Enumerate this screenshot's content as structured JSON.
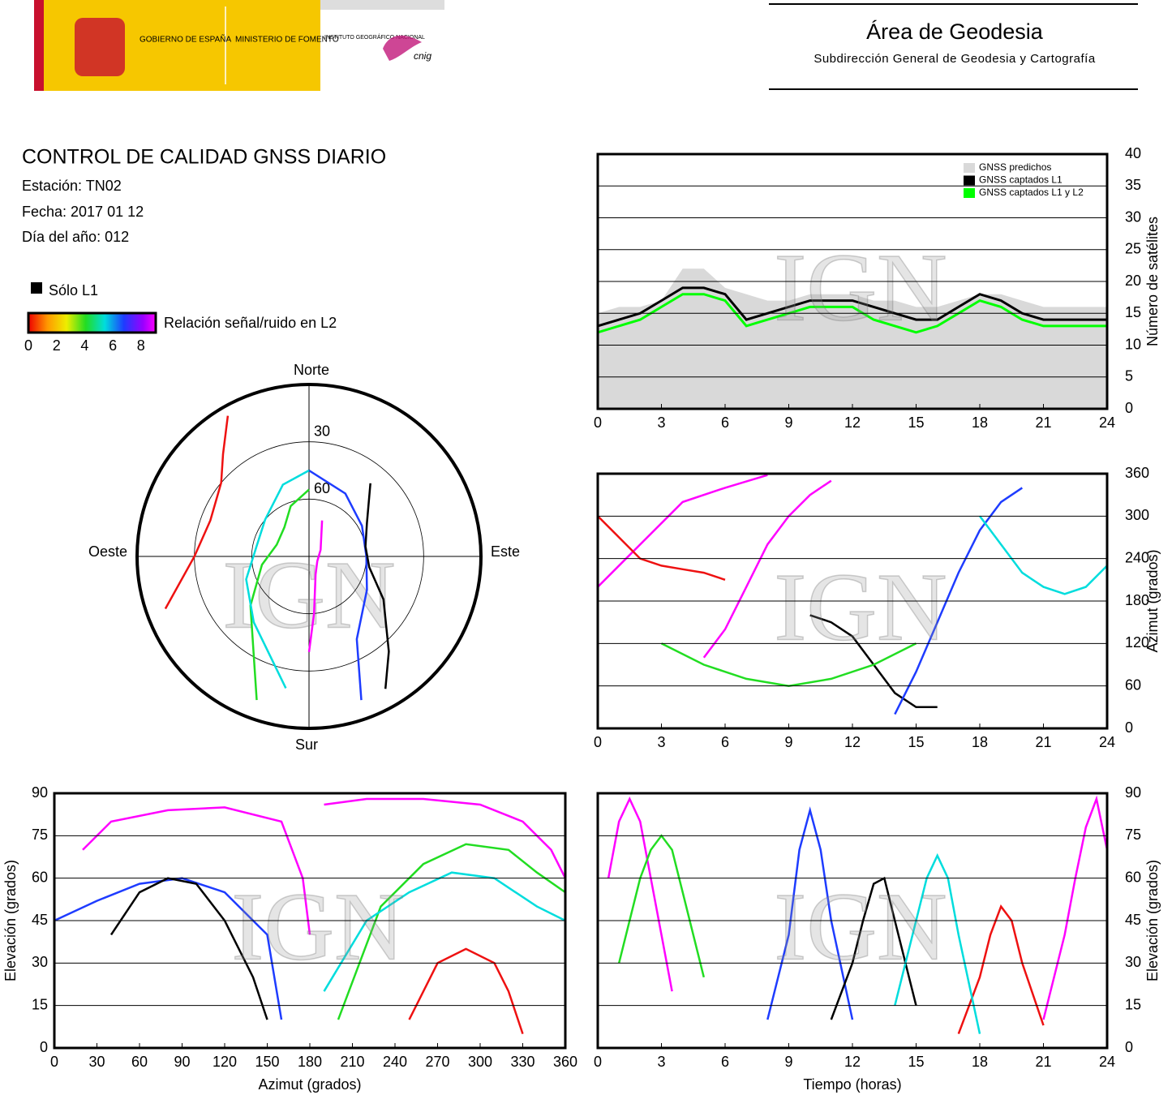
{
  "header": {
    "logo_gov": "GOBIERNO DE ESPAÑA",
    "logo_ministry": "MINISTERIO DE FOMENTO",
    "logo_institute": "INSTITUTO GEOGRÁFICO NACIONAL",
    "logo_cnig": "cnig",
    "area": "Área de Geodesia",
    "subdirectorate": "Subdirección General de Geodesia y Cartografía"
  },
  "info": {
    "title": "CONTROL DE CALIDAD GNSS DIARIO",
    "station": "Estación: TN02",
    "date": "Fecha: 2017 01 12",
    "day_of_year": "Día del año: 012"
  },
  "legend": {
    "only_l1": "Sólo L1",
    "snr_label": "Relación señal/ruido en L2",
    "snr_ticks": [
      0,
      2,
      4,
      6,
      8
    ]
  },
  "watermark": "IGN",
  "chart_data": [
    {
      "type": "polar",
      "directions": {
        "north": "Norte",
        "south": "Sur",
        "east": "Este",
        "west": "Oeste"
      },
      "rticks": [
        30,
        60
      ],
      "series": [
        {
          "color": "#ff00ff",
          "azimuth": [
            20,
            60,
            120,
            160,
            175,
            180
          ],
          "elevation": [
            70,
            83,
            85,
            80,
            60,
            40
          ]
        },
        {
          "color": "#1e3cff",
          "azimuth": [
            0,
            30,
            60,
            90,
            120,
            150,
            160
          ],
          "elevation": [
            45,
            52,
            58,
            60,
            55,
            40,
            10
          ]
        },
        {
          "color": "#000000",
          "azimuth": [
            40,
            60,
            80,
            100,
            120,
            140,
            150
          ],
          "elevation": [
            40,
            55,
            60,
            58,
            45,
            25,
            10
          ]
        },
        {
          "color": "#22dd22",
          "azimuth": [
            200,
            230,
            260,
            290,
            320,
            340,
            360
          ],
          "elevation": [
            10,
            50,
            65,
            72,
            70,
            62,
            55
          ]
        },
        {
          "color": "#ee1111",
          "azimuth": [
            250,
            270,
            290,
            310,
            320,
            330
          ],
          "elevation": [
            10,
            30,
            35,
            30,
            20,
            5
          ]
        },
        {
          "color": "#00dddd",
          "azimuth": [
            190,
            220,
            250,
            280,
            310,
            340,
            360
          ],
          "elevation": [
            20,
            45,
            55,
            62,
            60,
            50,
            45
          ]
        }
      ]
    },
    {
      "type": "line",
      "ylabel": "Número de satélites",
      "y_axis_side": "right",
      "grid": true,
      "legend": "upper right",
      "xlim": [
        0,
        24
      ],
      "xticks": [
        0,
        3,
        6,
        9,
        12,
        15,
        18,
        21,
        24
      ],
      "ylim": [
        0,
        40
      ],
      "yticks": [
        0,
        5,
        10,
        15,
        20,
        25,
        30,
        35,
        40
      ],
      "series": [
        {
          "name": "GNSS predichos",
          "color": "#d9d9d9",
          "style": "area",
          "x": [
            0,
            1,
            2,
            3,
            4,
            5,
            6,
            7,
            8,
            9,
            10,
            11,
            12,
            13,
            14,
            15,
            16,
            17,
            18,
            19,
            20,
            21,
            22,
            23,
            24
          ],
          "values": [
            15,
            16,
            16,
            17,
            22,
            22,
            19,
            18,
            17,
            17,
            18,
            18,
            18,
            17,
            17,
            16,
            16,
            17,
            18,
            18,
            17,
            16,
            16,
            16,
            16
          ]
        },
        {
          "name": "GNSS captados L1",
          "color": "#000000",
          "style": "line",
          "x": [
            0,
            1,
            2,
            3,
            4,
            5,
            6,
            7,
            8,
            9,
            10,
            11,
            12,
            13,
            14,
            15,
            16,
            17,
            18,
            19,
            20,
            21,
            22,
            23,
            24
          ],
          "values": [
            13,
            14,
            15,
            17,
            19,
            19,
            18,
            14,
            15,
            16,
            17,
            17,
            17,
            16,
            15,
            14,
            14,
            16,
            18,
            17,
            15,
            14,
            14,
            14,
            14
          ]
        },
        {
          "name": "GNSS captados L1 y L2",
          "color": "#00ff00",
          "style": "line",
          "x": [
            0,
            1,
            2,
            3,
            4,
            5,
            6,
            7,
            8,
            9,
            10,
            11,
            12,
            13,
            14,
            15,
            16,
            17,
            18,
            19,
            20,
            21,
            22,
            23,
            24
          ],
          "values": [
            12,
            13,
            14,
            16,
            18,
            18,
            17,
            13,
            14,
            15,
            16,
            16,
            16,
            14,
            13,
            12,
            13,
            15,
            17,
            16,
            14,
            13,
            13,
            13,
            13
          ]
        }
      ]
    },
    {
      "type": "line",
      "ylabel": "Azimut (grados)",
      "y_axis_side": "right",
      "grid": true,
      "xlim": [
        0,
        24
      ],
      "xticks": [
        0,
        3,
        6,
        9,
        12,
        15,
        18,
        21,
        24
      ],
      "ylim": [
        0,
        360
      ],
      "yticks": [
        0,
        60,
        120,
        180,
        240,
        300,
        360
      ],
      "series": [
        {
          "color": "#ff00ff",
          "x": [
            0,
            2,
            4,
            6,
            8
          ],
          "values": [
            200,
            260,
            320,
            340,
            358
          ]
        },
        {
          "color": "#000000",
          "x": [
            10,
            11,
            12,
            13,
            14,
            15,
            16
          ],
          "values": [
            160,
            150,
            130,
            90,
            50,
            30,
            30
          ]
        },
        {
          "color": "#ee1111",
          "x": [
            0,
            1,
            2,
            3,
            4,
            5,
            6
          ],
          "values": [
            300,
            270,
            240,
            230,
            225,
            220,
            210
          ]
        },
        {
          "color": "#22dd22",
          "x": [
            3,
            5,
            7,
            9,
            11,
            13,
            15
          ],
          "values": [
            120,
            90,
            70,
            60,
            70,
            90,
            120
          ]
        },
        {
          "color": "#1e3cff",
          "x": [
            14,
            15,
            16,
            17,
            18,
            19,
            20
          ],
          "values": [
            20,
            80,
            150,
            220,
            280,
            320,
            340
          ]
        },
        {
          "color": "#00dddd",
          "x": [
            18,
            19,
            20,
            21,
            22,
            23,
            24
          ],
          "values": [
            300,
            260,
            220,
            200,
            190,
            200,
            230
          ]
        },
        {
          "color": "#ff00ff",
          "x": [
            5,
            6,
            7,
            8,
            9,
            10,
            11
          ],
          "values": [
            100,
            140,
            200,
            260,
            300,
            330,
            350
          ]
        }
      ]
    },
    {
      "type": "line",
      "xlabel": "Azimut (grados)",
      "ylabel": "Elevación (grados)",
      "y_axis_side": "left",
      "grid": true,
      "xlim": [
        0,
        360
      ],
      "xticks": [
        0,
        30,
        60,
        90,
        120,
        150,
        180,
        210,
        240,
        270,
        300,
        330,
        360
      ],
      "ylim": [
        0,
        90
      ],
      "yticks": [
        0,
        15,
        30,
        45,
        60,
        75,
        90
      ],
      "series": [
        {
          "color": "#ff00ff",
          "x": [
            20,
            40,
            80,
            120,
            160,
            175,
            180
          ],
          "values": [
            70,
            80,
            84,
            85,
            80,
            60,
            40
          ]
        },
        {
          "color": "#1e3cff",
          "x": [
            0,
            30,
            60,
            90,
            120,
            150,
            160
          ],
          "values": [
            45,
            52,
            58,
            60,
            55,
            40,
            10
          ]
        },
        {
          "color": "#000000",
          "x": [
            40,
            60,
            80,
            100,
            120,
            140,
            150
          ],
          "values": [
            40,
            55,
            60,
            58,
            45,
            25,
            10
          ]
        },
        {
          "color": "#22dd22",
          "x": [
            200,
            230,
            260,
            290,
            320,
            340,
            360
          ],
          "values": [
            10,
            50,
            65,
            72,
            70,
            62,
            55
          ]
        },
        {
          "color": "#ee1111",
          "x": [
            250,
            270,
            290,
            310,
            320,
            330
          ],
          "values": [
            10,
            30,
            35,
            30,
            20,
            5
          ]
        },
        {
          "color": "#00dddd",
          "x": [
            190,
            220,
            250,
            280,
            310,
            340,
            360
          ],
          "values": [
            20,
            45,
            55,
            62,
            60,
            50,
            45
          ]
        },
        {
          "color": "#ff00ff",
          "x": [
            190,
            220,
            260,
            300,
            330,
            350,
            360
          ],
          "values": [
            86,
            88,
            88,
            86,
            80,
            70,
            60
          ]
        }
      ]
    },
    {
      "type": "line",
      "xlabel": "Tiempo (horas)",
      "ylabel": "Elevación (grados)",
      "y_axis_side": "right",
      "grid": true,
      "xlim": [
        0,
        24
      ],
      "xticks": [
        0,
        3,
        6,
        9,
        12,
        15,
        18,
        21,
        24
      ],
      "ylim": [
        0,
        90
      ],
      "yticks": [
        0,
        15,
        30,
        45,
        60,
        75,
        90
      ],
      "series": [
        {
          "color": "#ff00ff",
          "x": [
            0.5,
            1,
            1.5,
            2,
            2.5,
            3,
            3.5
          ],
          "values": [
            60,
            80,
            88,
            80,
            60,
            40,
            20
          ]
        },
        {
          "color": "#1e3cff",
          "x": [
            8,
            9,
            9.5,
            10,
            10.5,
            11,
            12
          ],
          "values": [
            10,
            40,
            70,
            84,
            70,
            45,
            10
          ]
        },
        {
          "color": "#22dd22",
          "x": [
            1,
            2,
            2.5,
            3,
            3.5,
            4,
            5
          ],
          "values": [
            30,
            60,
            70,
            75,
            70,
            55,
            25
          ]
        },
        {
          "color": "#000000",
          "x": [
            11,
            12,
            12.5,
            13,
            13.5,
            14,
            15
          ],
          "values": [
            10,
            30,
            45,
            58,
            60,
            45,
            15
          ]
        },
        {
          "color": "#ee1111",
          "x": [
            17,
            18,
            18.5,
            19,
            19.5,
            20,
            21
          ],
          "values": [
            5,
            25,
            40,
            50,
            45,
            30,
            8
          ]
        },
        {
          "color": "#00dddd",
          "x": [
            14,
            15,
            15.5,
            16,
            16.5,
            17,
            18
          ],
          "values": [
            15,
            45,
            60,
            68,
            60,
            40,
            5
          ]
        },
        {
          "color": "#ff00ff",
          "x": [
            21,
            22,
            22.5,
            23,
            23.5,
            24
          ],
          "values": [
            10,
            40,
            60,
            78,
            88,
            70
          ]
        }
      ]
    }
  ]
}
